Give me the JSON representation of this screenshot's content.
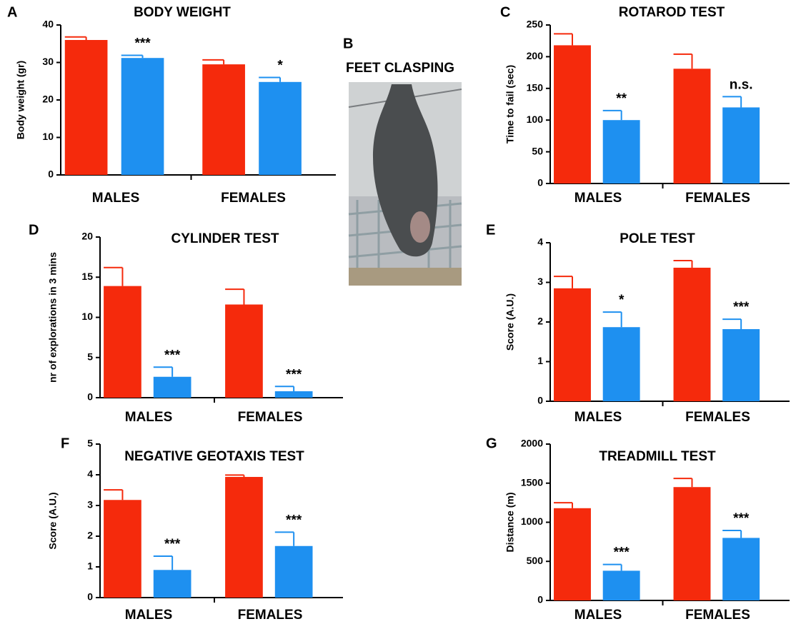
{
  "image_panel": {
    "label": "B",
    "title": "FEET CLASPING"
  },
  "chart_data": [
    {
      "type": "bar",
      "label": "A",
      "title": "BODY WEIGHT",
      "ylabel": "Body weight (gr)",
      "categories": [
        "MALES",
        "FEMALES"
      ],
      "series": [
        {
          "color": "#f52a0c",
          "values": [
            36,
            29.5
          ],
          "errors": [
            0.8,
            1.2
          ]
        },
        {
          "color": "#1e90f0",
          "values": [
            31.2,
            24.8
          ],
          "errors": [
            0.7,
            1.2
          ],
          "annotations": [
            "***",
            "*"
          ]
        }
      ],
      "ylim": [
        0,
        40
      ],
      "yticks": [
        0,
        10,
        20,
        30,
        40
      ]
    },
    {
      "type": "bar",
      "label": "C",
      "title": "ROTAROD TEST",
      "ylabel": "Time to fail (sec)",
      "categories": [
        "MALES",
        "FEMALES"
      ],
      "series": [
        {
          "color": "#f52a0c",
          "values": [
            218,
            181
          ],
          "errors": [
            18,
            23
          ]
        },
        {
          "color": "#1e90f0",
          "values": [
            100,
            120
          ],
          "errors": [
            15,
            17
          ],
          "annotations": [
            "**",
            "n.s."
          ]
        }
      ],
      "ylim": [
        0,
        250
      ],
      "yticks": [
        0,
        50,
        100,
        150,
        200,
        250
      ]
    },
    {
      "type": "bar",
      "label": "D",
      "title": "CYLINDER TEST",
      "ylabel": "nr of explorations in 3 mins",
      "categories": [
        "MALES",
        "FEMALES"
      ],
      "series": [
        {
          "color": "#f52a0c",
          "values": [
            13.9,
            11.6
          ],
          "errors": [
            2.3,
            1.9
          ]
        },
        {
          "color": "#1e90f0",
          "values": [
            2.6,
            0.8
          ],
          "errors": [
            1.2,
            0.6
          ],
          "annotations": [
            "***",
            "***"
          ]
        }
      ],
      "ylim": [
        0,
        20
      ],
      "yticks": [
        0,
        5,
        10,
        15,
        20
      ]
    },
    {
      "type": "bar",
      "label": "E",
      "title": "POLE TEST",
      "ylabel": "Score (A.U.)",
      "categories": [
        "MALES",
        "FEMALES"
      ],
      "series": [
        {
          "color": "#f52a0c",
          "values": [
            2.85,
            3.37
          ],
          "errors": [
            0.3,
            0.18
          ]
        },
        {
          "color": "#1e90f0",
          "values": [
            1.87,
            1.82
          ],
          "errors": [
            0.38,
            0.25
          ],
          "annotations": [
            "*",
            "***"
          ]
        }
      ],
      "ylim": [
        0,
        4
      ],
      "yticks": [
        0,
        1,
        2,
        3,
        4
      ]
    },
    {
      "type": "bar",
      "label": "F",
      "title": "NEGATIVE GEOTAXIS TEST",
      "ylabel": "Score (A.U.)",
      "categories": [
        "MALES",
        "FEMALES"
      ],
      "series": [
        {
          "color": "#f52a0c",
          "values": [
            3.18,
            3.93
          ],
          "errors": [
            0.33,
            0.06
          ]
        },
        {
          "color": "#1e90f0",
          "values": [
            0.9,
            1.68
          ],
          "errors": [
            0.45,
            0.45
          ],
          "annotations": [
            "***",
            "***"
          ]
        }
      ],
      "ylim": [
        0,
        5
      ],
      "yticks": [
        0,
        1,
        2,
        3,
        4,
        5
      ]
    },
    {
      "type": "bar",
      "label": "G",
      "title": "TREADMILL TEST",
      "ylabel": "Distance (m)",
      "categories": [
        "MALES",
        "FEMALES"
      ],
      "series": [
        {
          "color": "#f52a0c",
          "values": [
            1180,
            1450
          ],
          "errors": [
            70,
            110
          ]
        },
        {
          "color": "#1e90f0",
          "values": [
            380,
            800
          ],
          "errors": [
            80,
            95
          ],
          "annotations": [
            "***",
            "***"
          ]
        }
      ],
      "ylim": [
        0,
        2000
      ],
      "yticks": [
        0,
        500,
        1000,
        1500,
        2000
      ]
    }
  ]
}
